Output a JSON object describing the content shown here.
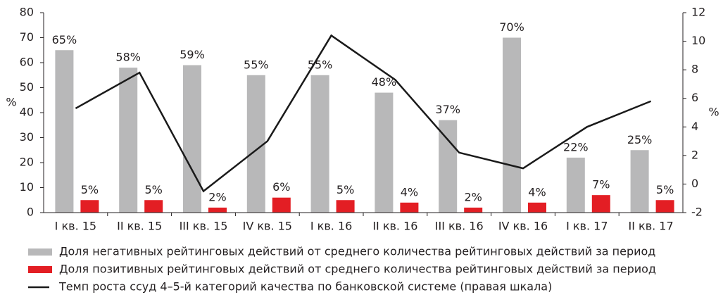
{
  "chart_data": {
    "type": "bar",
    "categories": [
      "I кв. 15",
      "II кв. 15",
      "III кв. 15",
      "IV кв. 15",
      "I кв. 16",
      "II кв. 16",
      "III кв. 16",
      "IV кв. 16",
      "I кв. 17",
      "II кв. 17"
    ],
    "series": [
      {
        "name": "Доля негативных рейтинговых действий от среднего количества рейтинговых действий за период",
        "color": "#b8b8b9",
        "type": "bar",
        "values": [
          65,
          58,
          59,
          55,
          55,
          48,
          37,
          70,
          22,
          25
        ],
        "value_labels": [
          "65%",
          "58%",
          "59%",
          "55%",
          "55%",
          "48%",
          "37%",
          "70%",
          "22%",
          "25%"
        ]
      },
      {
        "name": "Доля позитивных рейтинговых действий от среднего количества рейтинговых действий за период",
        "color": "#e31e24",
        "type": "bar",
        "values": [
          5,
          5,
          2,
          6,
          5,
          4,
          2,
          4,
          7,
          5
        ],
        "value_labels": [
          "5%",
          "5%",
          "2%",
          "6%",
          "5%",
          "4%",
          "2%",
          "4%",
          "7%",
          "5%"
        ]
      },
      {
        "name": "Темп роста ссуд 4–5-й категорий качества по банковской системе (правая шкала)",
        "color": "#1a1a1a",
        "type": "line",
        "axis": "y2",
        "values": [
          5.3,
          7.8,
          -0.5,
          3.0,
          10.4,
          7.3,
          2.2,
          1.1,
          4.0,
          5.8
        ]
      }
    ],
    "y_label": "%",
    "y2_label": "%",
    "ylim": [
      0,
      80
    ],
    "yticks": [
      0,
      10,
      20,
      30,
      40,
      50,
      60,
      70,
      80
    ],
    "y2lim": [
      -2,
      12
    ],
    "y2ticks": [
      -2,
      0,
      2,
      4,
      6,
      8,
      10,
      12
    ]
  }
}
